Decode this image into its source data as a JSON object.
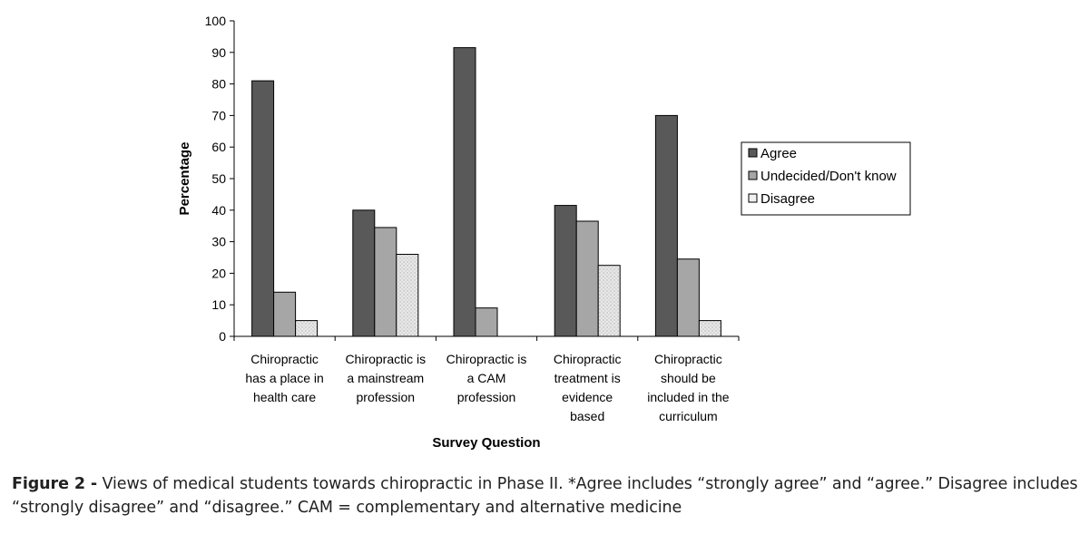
{
  "chart_data": {
    "type": "bar",
    "title": "",
    "xlabel": "Survey Question",
    "ylabel": "Percentage",
    "ylim": [
      0,
      100
    ],
    "yticks": [
      0,
      10,
      20,
      30,
      40,
      50,
      60,
      70,
      80,
      90,
      100
    ],
    "grid": false,
    "legend_position": "right",
    "categories": [
      [
        "Chiropractic",
        "has a place in",
        "health care"
      ],
      [
        "Chiropractic is",
        "a mainstream",
        "profession"
      ],
      [
        "Chiropractic is",
        "a CAM",
        "profession"
      ],
      [
        "Chiropractic",
        "treatment is",
        "evidence",
        "based"
      ],
      [
        "Chiropractic",
        "should be",
        "included in the",
        "curriculum"
      ]
    ],
    "series": [
      {
        "name": "Agree",
        "color": "#595959",
        "values": [
          81,
          40,
          91.5,
          41.5,
          70
        ]
      },
      {
        "name": "Undecided/Don't know",
        "color": "#a6a6a6",
        "values": [
          14,
          34.5,
          9,
          36.5,
          24.5
        ]
      },
      {
        "name": "Disagree",
        "color": "#e6e6e6",
        "values": [
          5,
          26,
          0,
          22.5,
          5
        ]
      }
    ]
  },
  "caption": {
    "label": "Figure 2 -",
    "text": " Views of medical students towards chiropractic in Phase II. *Agree includes “strongly agree” and “agree.” Disagree includes “strongly disagree” and “disagree.” CAM = complementary and alternative medicine"
  }
}
